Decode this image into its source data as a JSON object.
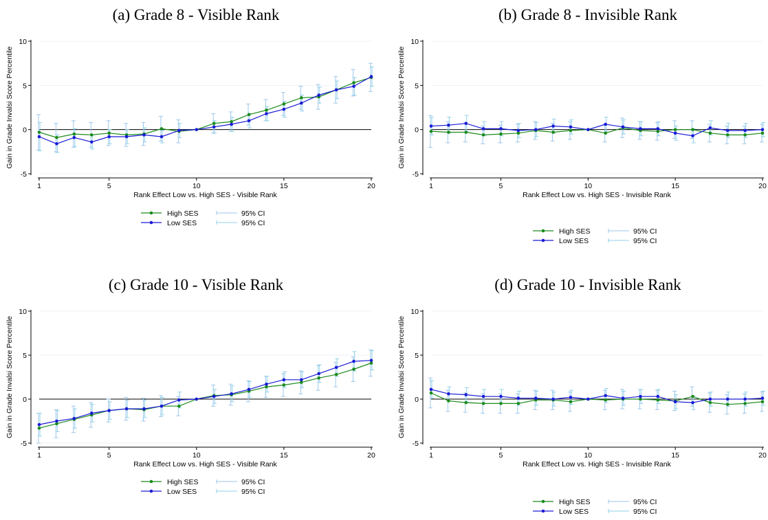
{
  "chart_data": [
    {
      "type": "line",
      "title": "(a) Grade 8 - Visible Rank",
      "xlabel": "Rank Effect Low vs. High SES - Visible Rank",
      "ylabel": "Gain in Grade  Invalsi Score Percentile",
      "xlim": [
        1,
        20
      ],
      "ylim": [
        -5,
        10
      ],
      "xticks": [
        1,
        5,
        10,
        15,
        20
      ],
      "yticks": [
        -5,
        0,
        5,
        10
      ],
      "grid": true,
      "legend": [
        "High SES",
        "Low SES",
        "95% CI",
        "95% CI"
      ],
      "x": [
        1,
        2,
        3,
        4,
        5,
        6,
        7,
        8,
        9,
        10,
        11,
        12,
        13,
        14,
        15,
        16,
        17,
        18,
        19,
        20
      ],
      "series": [
        {
          "name": "High SES",
          "color": "#1a8a1a",
          "values": [
            -0.3,
            -0.9,
            -0.5,
            -0.6,
            -0.4,
            -0.6,
            -0.5,
            0.1,
            -0.2,
            0.0,
            0.7,
            0.9,
            1.7,
            2.2,
            2.9,
            3.6,
            3.7,
            4.5,
            5.3,
            5.9
          ],
          "ci_low": [
            -2.3,
            -2.5,
            -2.0,
            -2.0,
            -1.8,
            -1.9,
            -1.8,
            -1.3,
            -1.5,
            0.0,
            -0.4,
            -0.2,
            0.5,
            1.0,
            1.6,
            2.3,
            2.3,
            3.0,
            3.8,
            4.3
          ],
          "ci_high": [
            1.7,
            0.7,
            1.0,
            0.8,
            1.0,
            0.7,
            0.8,
            1.5,
            1.1,
            0.0,
            1.8,
            2.0,
            2.9,
            3.4,
            4.2,
            4.9,
            5.1,
            6.0,
            6.8,
            7.5
          ]
        },
        {
          "name": "Low SES",
          "color": "#1a1ad6",
          "values": [
            -0.8,
            -1.6,
            -0.9,
            -1.4,
            -0.8,
            -0.8,
            -0.6,
            -0.8,
            -0.1,
            0.0,
            0.3,
            0.6,
            1.0,
            1.8,
            2.3,
            3.0,
            3.9,
            4.5,
            4.9,
            6.0
          ],
          "ci_low": [
            -2.4,
            -2.6,
            -1.9,
            -2.2,
            -1.6,
            -1.6,
            -1.4,
            -1.5,
            -0.9,
            0.0,
            -0.4,
            -0.2,
            0.2,
            1.0,
            1.4,
            2.1,
            3.0,
            3.5,
            3.9,
            4.9
          ],
          "ci_high": [
            0.8,
            -0.6,
            0.1,
            -0.6,
            0.0,
            0.0,
            0.2,
            -0.1,
            0.7,
            0.0,
            1.0,
            1.4,
            1.8,
            2.6,
            3.2,
            3.9,
            4.8,
            5.5,
            5.9,
            7.1
          ]
        }
      ]
    },
    {
      "type": "line",
      "title": "(b) Grade 8 - Invisible Rank",
      "xlabel": "Rank Effect Low vs. High SES - Invisible Rank",
      "ylabel": "Gain in Grade  Invalsi Score Percentile",
      "xlim": [
        1,
        20
      ],
      "ylim": [
        -5,
        10
      ],
      "xticks": [
        1,
        5,
        10,
        15,
        20
      ],
      "yticks": [
        -5,
        0,
        5,
        10
      ],
      "grid": true,
      "legend": [
        "High SES",
        "Low SES",
        "95% CI",
        "95% CI"
      ],
      "x": [
        1,
        2,
        3,
        4,
        5,
        6,
        7,
        8,
        9,
        10,
        11,
        12,
        13,
        14,
        15,
        16,
        17,
        18,
        19,
        20
      ],
      "series": [
        {
          "name": "High SES",
          "color": "#1a8a1a",
          "values": [
            -0.2,
            -0.3,
            -0.3,
            -0.6,
            -0.5,
            -0.4,
            -0.1,
            -0.3,
            -0.1,
            0.0,
            -0.4,
            0.2,
            -0.1,
            -0.2,
            0.0,
            0.0,
            -0.4,
            -0.6,
            -0.6,
            -0.4
          ],
          "ci_low": [
            -2.0,
            -1.5,
            -1.4,
            -1.6,
            -1.5,
            -1.4,
            -1.1,
            -1.3,
            -1.1,
            0.0,
            -1.4,
            -0.9,
            -1.1,
            -1.2,
            -1.0,
            -1.0,
            -1.4,
            -1.6,
            -1.6,
            -1.4
          ],
          "ci_high": [
            1.6,
            0.9,
            0.8,
            0.4,
            0.5,
            0.6,
            0.9,
            0.7,
            0.9,
            0.0,
            0.6,
            1.3,
            0.9,
            0.8,
            1.0,
            1.0,
            0.6,
            0.4,
            0.4,
            0.6
          ]
        },
        {
          "name": "Low SES",
          "color": "#1a1ad6",
          "values": [
            0.4,
            0.5,
            0.7,
            0.1,
            0.1,
            -0.1,
            0.0,
            0.4,
            0.3,
            0.0,
            0.6,
            0.3,
            0.1,
            0.1,
            -0.4,
            -0.7,
            0.2,
            -0.1,
            -0.1,
            0.0
          ],
          "ci_low": [
            -0.6,
            -0.4,
            -0.2,
            -0.7,
            -0.7,
            -0.9,
            -0.8,
            -0.4,
            -0.5,
            0.0,
            -0.2,
            -0.5,
            -0.7,
            -0.7,
            -1.2,
            -1.5,
            -0.6,
            -0.9,
            -0.9,
            -0.8
          ],
          "ci_high": [
            1.4,
            1.4,
            1.6,
            0.9,
            0.9,
            0.7,
            0.8,
            1.2,
            1.1,
            0.0,
            1.4,
            1.1,
            0.9,
            0.9,
            0.4,
            0.1,
            1.0,
            0.7,
            0.7,
            0.8
          ]
        }
      ]
    },
    {
      "type": "line",
      "title": "(c) Grade 10 - Visible Rank",
      "xlabel": "Rank Effect Low vs. High SES - Visible Rank",
      "ylabel": "Gain in Grade  Invalsi Score Percentile",
      "xlim": [
        1,
        20
      ],
      "ylim": [
        -5,
        10
      ],
      "xticks": [
        1,
        5,
        10,
        15,
        20
      ],
      "yticks": [
        -5,
        0,
        5,
        10
      ],
      "grid": true,
      "legend": [
        "High SES",
        "Low SES",
        "95% CI",
        "95% CI"
      ],
      "x": [
        1,
        2,
        3,
        4,
        5,
        6,
        7,
        8,
        9,
        10,
        11,
        12,
        13,
        14,
        15,
        16,
        17,
        18,
        19,
        20
      ],
      "series": [
        {
          "name": "High SES",
          "color": "#1a8a1a",
          "values": [
            -3.3,
            -2.8,
            -2.3,
            -1.8,
            -1.3,
            -1.1,
            -1.2,
            -0.8,
            -0.8,
            0.0,
            0.4,
            0.5,
            0.9,
            1.4,
            1.6,
            1.9,
            2.4,
            2.8,
            3.4,
            4.1
          ],
          "ci_low": [
            -5.0,
            -4.4,
            -3.8,
            -3.2,
            -2.6,
            -2.4,
            -2.5,
            -2.0,
            -1.9,
            0.0,
            -0.8,
            -0.7,
            -0.3,
            0.2,
            0.3,
            0.6,
            1.0,
            1.4,
            2.0,
            2.6
          ],
          "ci_high": [
            -1.6,
            -1.2,
            -0.8,
            -0.4,
            0.0,
            0.2,
            0.1,
            0.4,
            0.3,
            0.0,
            1.6,
            1.7,
            2.1,
            2.6,
            2.9,
            3.2,
            3.8,
            4.2,
            4.8,
            5.6
          ]
        },
        {
          "name": "Low SES",
          "color": "#1a1ad6",
          "values": [
            -2.9,
            -2.5,
            -2.2,
            -1.6,
            -1.3,
            -1.1,
            -1.1,
            -0.8,
            -0.1,
            0.0,
            0.3,
            0.6,
            1.1,
            1.7,
            2.2,
            2.2,
            2.9,
            3.6,
            4.3,
            4.4
          ],
          "ci_low": [
            -4.2,
            -3.7,
            -3.3,
            -2.6,
            -2.3,
            -2.1,
            -2.1,
            -1.8,
            -1.0,
            0.0,
            -0.5,
            -0.3,
            0.2,
            0.8,
            1.3,
            1.3,
            1.9,
            2.6,
            3.2,
            3.3
          ],
          "ci_high": [
            -1.6,
            -1.3,
            -1.1,
            -0.6,
            -0.3,
            -0.1,
            -0.1,
            0.2,
            0.8,
            0.0,
            1.1,
            1.5,
            2.0,
            2.6,
            3.1,
            3.1,
            3.9,
            4.6,
            5.4,
            5.5
          ]
        }
      ]
    },
    {
      "type": "line",
      "title": "(d) Grade 10 - Invisible Rank",
      "xlabel": "Rank Effect Low vs. High SES - Invisible Rank",
      "ylabel": "Gain in Grade  Invalsi Score Percentile",
      "xlim": [
        1,
        20
      ],
      "ylim": [
        -5,
        10
      ],
      "xticks": [
        1,
        5,
        10,
        15,
        20
      ],
      "yticks": [
        -5,
        0,
        5,
        10
      ],
      "grid": true,
      "legend": [
        "High SES",
        "Low SES",
        "95% CI",
        "95% CI"
      ],
      "x": [
        1,
        2,
        3,
        4,
        5,
        6,
        7,
        8,
        9,
        10,
        11,
        12,
        13,
        14,
        15,
        16,
        17,
        18,
        19,
        20
      ],
      "series": [
        {
          "name": "High SES",
          "color": "#1a8a1a",
          "values": [
            0.7,
            -0.2,
            -0.4,
            -0.5,
            -0.5,
            -0.5,
            -0.1,
            -0.1,
            -0.3,
            0.0,
            -0.1,
            0.0,
            0.0,
            -0.1,
            -0.2,
            0.3,
            -0.4,
            -0.6,
            -0.5,
            -0.3
          ],
          "ci_low": [
            -1.0,
            -1.4,
            -1.5,
            -1.6,
            -1.6,
            -1.6,
            -1.2,
            -1.2,
            -1.4,
            0.0,
            -1.2,
            -1.1,
            -1.1,
            -1.2,
            -1.3,
            -0.8,
            -1.5,
            -1.7,
            -1.6,
            -1.4
          ],
          "ci_high": [
            2.4,
            1.0,
            0.7,
            0.6,
            0.6,
            0.6,
            1.0,
            1.0,
            0.8,
            0.0,
            1.0,
            1.1,
            1.1,
            1.0,
            0.9,
            1.4,
            0.7,
            0.5,
            0.6,
            0.8
          ]
        },
        {
          "name": "Low SES",
          "color": "#1a1ad6",
          "values": [
            1.1,
            0.6,
            0.5,
            0.3,
            0.3,
            0.1,
            0.1,
            0.0,
            0.2,
            0.0,
            0.4,
            0.1,
            0.3,
            0.3,
            -0.3,
            -0.4,
            0.0,
            0.0,
            0.0,
            0.1
          ],
          "ci_low": [
            0.1,
            -0.2,
            -0.3,
            -0.5,
            -0.5,
            -0.7,
            -0.7,
            -0.8,
            -0.6,
            0.0,
            -0.4,
            -0.7,
            -0.5,
            -0.5,
            -1.1,
            -1.2,
            -0.8,
            -0.8,
            -0.8,
            -0.7
          ],
          "ci_high": [
            2.1,
            1.4,
            1.3,
            1.1,
            1.1,
            0.9,
            0.9,
            0.8,
            1.0,
            0.0,
            1.2,
            0.9,
            1.1,
            1.1,
            0.5,
            0.4,
            0.8,
            0.8,
            0.8,
            0.9
          ]
        }
      ]
    }
  ],
  "colors": {
    "high_ses": "#1a8a1a",
    "low_ses": "#1a1ad6",
    "ci_high_ses": "#9cc6ea",
    "ci_low_ses": "#8fd0e8",
    "gridline": "#eef2f6",
    "axis": "#000000"
  }
}
